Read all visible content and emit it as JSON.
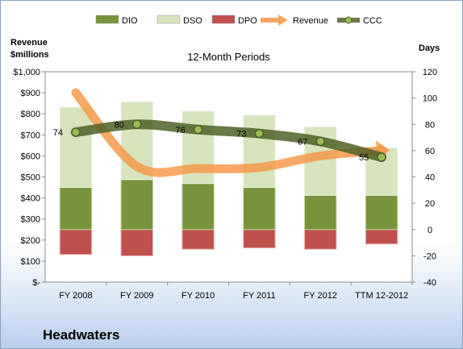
{
  "company": "Headwaters",
  "chart_data": {
    "type": "bar",
    "title": "12-Month Periods",
    "left_axis_label": [
      "Revenue",
      "$millions"
    ],
    "right_axis_label": "Days",
    "categories": [
      "FY 2008",
      "FY 2009",
      "FY 2010",
      "FY 2011",
      "FY 2012",
      "TTM 12-2012"
    ],
    "left_axis": {
      "min": 0,
      "max": 1000,
      "step": 100,
      "tick_labels": [
        "$-",
        "$100",
        "$200",
        "$300",
        "$400",
        "$500",
        "$600",
        "$700",
        "$800",
        "$900",
        "$1,000"
      ]
    },
    "right_axis": {
      "min": -40,
      "max": 120,
      "step": 20,
      "tick_labels": [
        "-40",
        "-20",
        "0",
        "20",
        "40",
        "60",
        "80",
        "100",
        "120"
      ]
    },
    "stacked_series": [
      {
        "name": "DIO",
        "color": "#77933c",
        "values": [
          32,
          38,
          35,
          32,
          26,
          26
        ]
      },
      {
        "name": "DSO",
        "color": "#d7e4bd",
        "values": [
          61,
          59,
          55,
          55,
          52,
          36
        ]
      },
      {
        "name": "DPO",
        "color": "#c0504d",
        "values": [
          -19,
          -20,
          -15,
          -14,
          -15,
          -11
        ]
      }
    ],
    "line_series": [
      {
        "name": "Revenue",
        "axis": "left",
        "color": "#f79646",
        "values": [
          900,
          550,
          540,
          545,
          600,
          625
        ]
      },
      {
        "name": "CCC",
        "axis": "right",
        "color": "#4f6228",
        "values": [
          74,
          80,
          76,
          73,
          67,
          55
        ],
        "data_labels": [
          "74",
          "80",
          "76",
          "73",
          "67",
          "55"
        ]
      }
    ],
    "legend": {
      "position": "top",
      "items": [
        "DIO",
        "DSO",
        "DPO",
        "Revenue",
        "CCC"
      ]
    },
    "grid": false
  }
}
